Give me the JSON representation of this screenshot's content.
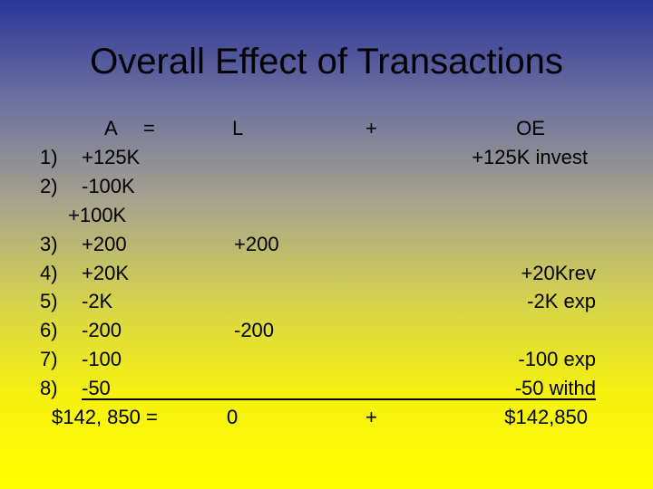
{
  "header": {
    "title": "Overall Effect of Transactions"
  },
  "table": {
    "columns": {
      "a": "A",
      "eq": "=",
      "l": "L",
      "plus": "+",
      "oe": "OE"
    },
    "rows": [
      {
        "number": "1)",
        "a": "+125K",
        "oe": "+125K invest"
      },
      {
        "number": "2)",
        "a": "-100K"
      },
      {
        "a": "+100K"
      },
      {
        "number": "3)",
        "a": "+200",
        "l": "+200"
      },
      {
        "number": "4)",
        "a": "+20K",
        "oe": "+20Krev"
      },
      {
        "number": "5)",
        "a": "-2K",
        "oe": "-2K exp"
      },
      {
        "number": "6)",
        "a": "-200",
        "l": "-200"
      },
      {
        "number": "7)",
        "a": "-100",
        "oe": "-100 exp"
      },
      {
        "number": "8)",
        "a": "-50",
        "oe": "-50 withd"
      }
    ],
    "total": {
      "a": "$142, 850 =",
      "l": "0",
      "plus": "+",
      "oe": "$142,850"
    }
  }
}
